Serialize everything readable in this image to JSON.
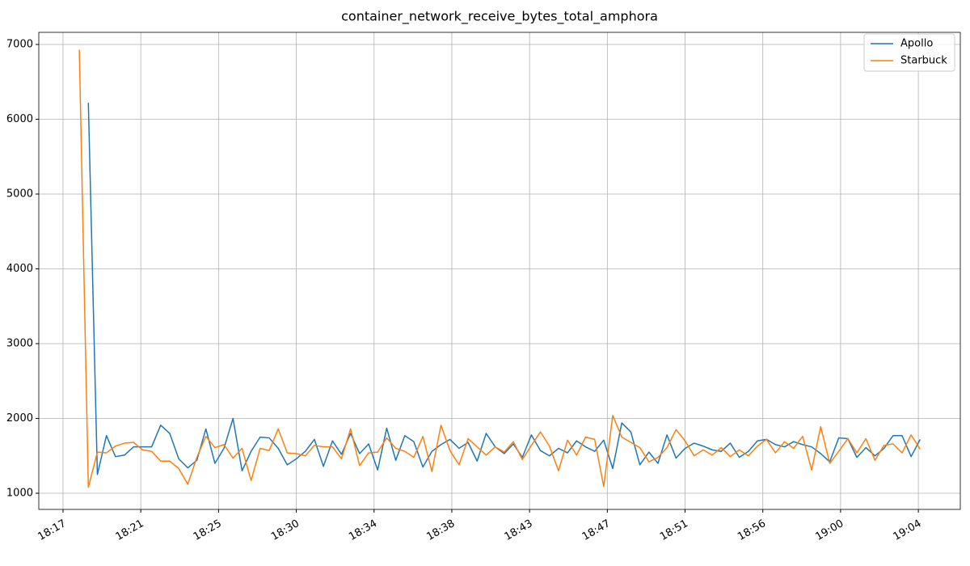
{
  "chart_data": {
    "type": "line",
    "title": "container_network_receive_bytes_total_amphora",
    "x": [
      18.2,
      18.7,
      19.2,
      19.7,
      20.2,
      20.7,
      21.2,
      21.7,
      22.2,
      22.7,
      23.2,
      23.7,
      24.2,
      24.7,
      25.2,
      25.7,
      26.2,
      26.7,
      27.2,
      27.7,
      28.2,
      28.7,
      29.2,
      29.7,
      30.2,
      30.7,
      31.2,
      31.7,
      32.2,
      32.7,
      33.2,
      33.7,
      34.2,
      34.7,
      35.2,
      35.7,
      36.2,
      36.7,
      37.2,
      37.7,
      38.2,
      38.7,
      39.2,
      39.7,
      40.2,
      40.7,
      41.2,
      41.7,
      42.2,
      42.7,
      43.2,
      43.7,
      44.2,
      44.7,
      45.2,
      45.7,
      46.2,
      46.7,
      47.2,
      47.7,
      48.2,
      48.7,
      49.2,
      49.7,
      50.2,
      50.7,
      51.2,
      51.7,
      52.2,
      52.7,
      53.2,
      53.7,
      54.2,
      54.7,
      55.2,
      55.7,
      56.2,
      56.7,
      57.2,
      57.7,
      58.2,
      58.7,
      59.2,
      59.7,
      60.2,
      60.7,
      61.2,
      61.7,
      62.2,
      62.7,
      63.2,
      63.7,
      64.2,
      64.7
    ],
    "series": [
      {
        "name": "Apollo",
        "color": "#1f77b4",
        "values": [
          null,
          6220,
          1250,
          1770,
          1490,
          1510,
          1620,
          1620,
          1620,
          1910,
          1800,
          1460,
          1340,
          1440,
          1860,
          1400,
          1600,
          2000,
          1300,
          1560,
          1750,
          1740,
          1600,
          1380,
          1460,
          1560,
          1720,
          1360,
          1700,
          1520,
          1800,
          1530,
          1660,
          1310,
          1870,
          1440,
          1770,
          1690,
          1350,
          1560,
          1650,
          1720,
          1600,
          1680,
          1430,
          1800,
          1620,
          1530,
          1660,
          1480,
          1780,
          1570,
          1500,
          1600,
          1540,
          1700,
          1620,
          1560,
          1710,
          1330,
          1940,
          1820,
          1380,
          1550,
          1400,
          1780,
          1470,
          1600,
          1670,
          1630,
          1580,
          1560,
          1670,
          1480,
          1560,
          1700,
          1720,
          1650,
          1620,
          1690,
          1650,
          1620,
          1530,
          1420,
          1740,
          1730,
          1480,
          1610,
          1500,
          1600,
          1770,
          1770,
          1490,
          1720
        ]
      },
      {
        "name": "Starbuck",
        "color": "#ff7f0e",
        "values": [
          6930,
          1080,
          1550,
          1540,
          1630,
          1670,
          1680,
          1580,
          1560,
          1430,
          1430,
          1330,
          1120,
          1480,
          1760,
          1610,
          1650,
          1470,
          1600,
          1170,
          1600,
          1570,
          1860,
          1540,
          1530,
          1500,
          1640,
          1620,
          1620,
          1460,
          1860,
          1370,
          1540,
          1550,
          1740,
          1600,
          1560,
          1480,
          1760,
          1290,
          1910,
          1570,
          1380,
          1730,
          1620,
          1510,
          1620,
          1550,
          1690,
          1450,
          1640,
          1820,
          1630,
          1300,
          1710,
          1510,
          1750,
          1720,
          1090,
          2040,
          1750,
          1680,
          1610,
          1420,
          1480,
          1610,
          1850,
          1700,
          1500,
          1580,
          1510,
          1610,
          1490,
          1580,
          1500,
          1630,
          1720,
          1540,
          1690,
          1600,
          1760,
          1310,
          1890,
          1400,
          1560,
          1730,
          1540,
          1730,
          1440,
          1640,
          1660,
          1540,
          1780,
          1590
        ]
      }
    ],
    "xlim": [
      15.96,
      66.92
    ],
    "xticks": [
      {
        "value": 17.3,
        "label": "18:17"
      },
      {
        "value": 21.6,
        "label": "18:21"
      },
      {
        "value": 25.9,
        "label": "18:25"
      },
      {
        "value": 30.2,
        "label": "18:30"
      },
      {
        "value": 34.5,
        "label": "18:34"
      },
      {
        "value": 38.8,
        "label": "18:38"
      },
      {
        "value": 43.1,
        "label": "18:43"
      },
      {
        "value": 47.4,
        "label": "18:47"
      },
      {
        "value": 51.7,
        "label": "18:51"
      },
      {
        "value": 56.0,
        "label": "18:56"
      },
      {
        "value": 60.3,
        "label": "19:00"
      },
      {
        "value": 64.6,
        "label": "19:04"
      }
    ],
    "ylim": [
      784,
      7162
    ],
    "yticks": [
      1000,
      2000,
      3000,
      4000,
      5000,
      6000,
      7000
    ],
    "grid": true,
    "legend": "upper right"
  }
}
